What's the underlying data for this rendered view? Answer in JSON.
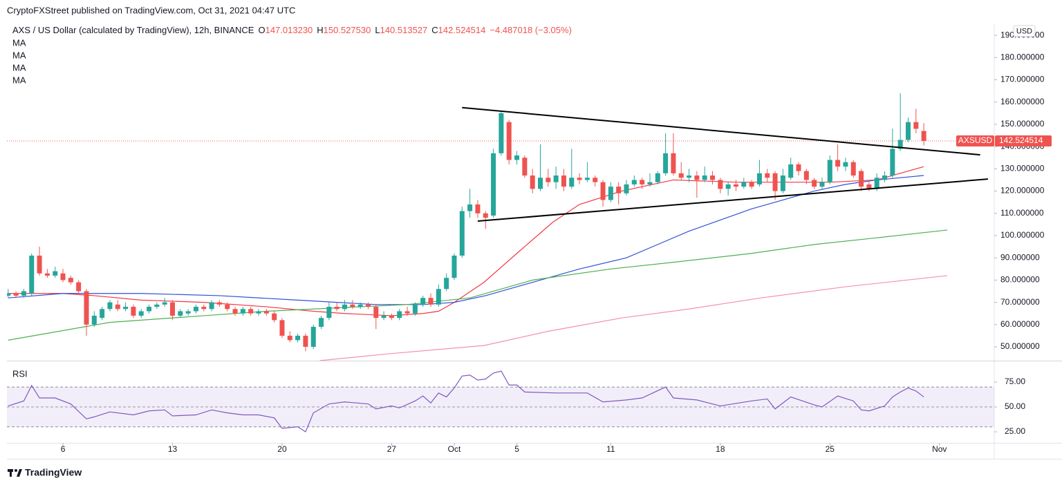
{
  "header": {
    "publisher": "CryptoFXStreet published on TradingView.com, Oct 31, 2021 04:47 UTC",
    "symbol": "AXS / US Dollar (calculated by TradingView), 12h, BINANCE",
    "ohlc_keys": [
      "O",
      "H",
      "L",
      "C"
    ],
    "ohlc_values": [
      "147.013230",
      "150.527530",
      "140.513527",
      "142.524514"
    ],
    "change": "−4.487018 (−3.05%)"
  },
  "chart_data": [
    {
      "type": "candlestick",
      "up_color": "#26a69a",
      "down_color": "#ef5350",
      "xlim": [
        1.42,
        64.5
      ],
      "xticks": [
        {
          "value": 5,
          "label": "6"
        },
        {
          "value": 12,
          "label": "13"
        },
        {
          "value": 19,
          "label": "20"
        },
        {
          "value": 26,
          "label": "27"
        },
        {
          "value": 30,
          "label": "Oct"
        },
        {
          "value": 34,
          "label": "5"
        },
        {
          "value": 40,
          "label": "11"
        },
        {
          "value": 47,
          "label": "18"
        },
        {
          "value": 54,
          "label": "25"
        },
        {
          "value": 61,
          "label": "Nov"
        }
      ],
      "ylim": [
        43.8,
        195
      ],
      "yticks": [
        {
          "value": 50,
          "label": "50.000000"
        },
        {
          "value": 60,
          "label": "60.000000"
        },
        {
          "value": 70,
          "label": "70.000000"
        },
        {
          "value": 80,
          "label": "80.000000"
        },
        {
          "value": 90,
          "label": "90.000000"
        },
        {
          "value": 100,
          "label": "100.000000"
        },
        {
          "value": 110,
          "label": "110.000000"
        },
        {
          "value": 120,
          "label": "120.000000"
        },
        {
          "value": 130,
          "label": "130.000000"
        },
        {
          "value": 140,
          "label": "140.000000"
        },
        {
          "value": 150,
          "label": "150.000000"
        },
        {
          "value": 160,
          "label": "160.000000"
        },
        {
          "value": 170,
          "label": "170.000000"
        },
        {
          "value": 180,
          "label": "180.000000"
        },
        {
          "value": 190,
          "label": "190.000000"
        }
      ],
      "currency": "USD",
      "symbol_tag": "AXSUSD",
      "last_price": 142.524514,
      "x": [
        1.5,
        2,
        2.5,
        3,
        3.5,
        4,
        4.5,
        5,
        5.5,
        6,
        6.5,
        7,
        7.5,
        8,
        8.5,
        9,
        9.5,
        10,
        10.5,
        11,
        11.5,
        12,
        12.5,
        13,
        13.5,
        14,
        14.5,
        15,
        15.5,
        16,
        16.5,
        17,
        17.5,
        18,
        18.5,
        19,
        19.5,
        20,
        20.5,
        21,
        21.5,
        22,
        22.5,
        23,
        23.5,
        24,
        24.5,
        25,
        25.5,
        26,
        26.5,
        27,
        27.5,
        28,
        28.5,
        29,
        29.5,
        30,
        30.5,
        31,
        31.5,
        32,
        32.5,
        33,
        33.5,
        34,
        34.5,
        35,
        35.5,
        36,
        36.5,
        37,
        37.5,
        38,
        38.5,
        39,
        39.5,
        40,
        40.5,
        41,
        41.5,
        42,
        42.5,
        43,
        43.5,
        44,
        44.5,
        45,
        45.5,
        46,
        46.5,
        47,
        47.5,
        48,
        48.5,
        49,
        49.5,
        50,
        50.5,
        51,
        51.5,
        52,
        52.5,
        53,
        53.5,
        54,
        54.5,
        55,
        55.5,
        56,
        56.5,
        57,
        57.5,
        58,
        58.5,
        59,
        59.5,
        60
      ],
      "ohlc": [
        [
          73,
          76,
          72,
          74
        ],
        [
          74,
          75,
          72,
          73
        ],
        [
          73,
          76,
          72,
          75
        ],
        [
          74,
          92,
          73,
          91
        ],
        [
          91,
          95,
          82,
          83
        ],
        [
          83,
          85,
          81,
          82
        ],
        [
          82,
          86,
          81,
          84
        ],
        [
          83,
          85,
          79,
          80
        ],
        [
          81,
          82,
          78,
          79
        ],
        [
          79,
          80,
          74,
          75
        ],
        [
          75,
          76,
          55,
          60
        ],
        [
          60,
          66,
          59,
          64
        ],
        [
          63,
          68,
          62,
          67
        ],
        [
          67,
          71,
          66,
          70
        ],
        [
          69,
          71,
          66,
          67
        ],
        [
          67,
          70,
          66,
          68
        ],
        [
          68,
          69,
          63,
          64
        ],
        [
          64,
          67,
          63,
          66
        ],
        [
          66,
          69,
          65,
          68
        ],
        [
          68,
          70,
          67,
          69
        ],
        [
          69,
          72,
          68,
          70
        ],
        [
          70,
          71,
          62,
          64
        ],
        [
          64,
          67,
          63,
          66
        ],
        [
          65,
          67,
          64,
          66
        ],
        [
          66,
          69,
          65,
          68
        ],
        [
          68,
          69,
          66,
          67
        ],
        [
          67,
          71,
          66,
          70
        ],
        [
          70,
          71,
          68,
          69
        ],
        [
          69,
          70,
          66,
          67
        ],
        [
          67,
          68,
          64,
          65
        ],
        [
          65,
          68,
          64,
          67
        ],
        [
          67,
          68,
          64,
          65
        ],
        [
          65,
          67,
          64,
          66
        ],
        [
          66,
          67,
          64,
          65
        ],
        [
          65,
          66,
          61,
          62
        ],
        [
          62,
          63,
          54,
          55
        ],
        [
          55,
          57,
          52,
          53
        ],
        [
          53,
          56,
          52,
          55
        ],
        [
          55,
          56,
          48,
          50
        ],
        [
          50,
          60,
          49,
          59
        ],
        [
          59,
          64,
          58,
          63
        ],
        [
          63,
          70,
          62,
          68
        ],
        [
          68,
          70,
          66,
          67
        ],
        [
          67,
          71,
          66,
          69
        ],
        [
          69,
          71,
          67,
          68
        ],
        [
          68,
          70,
          67,
          69
        ],
        [
          69,
          70,
          67,
          68
        ],
        [
          68,
          69,
          58,
          63
        ],
        [
          63,
          66,
          62,
          64
        ],
        [
          64,
          65,
          62,
          63
        ],
        [
          63,
          67,
          62,
          66
        ],
        [
          66,
          68,
          64,
          65
        ],
        [
          65,
          70,
          64,
          69
        ],
        [
          69,
          73,
          68,
          72
        ],
        [
          72,
          74,
          68,
          69
        ],
        [
          69,
          78,
          68,
          76
        ],
        [
          76,
          83,
          75,
          81
        ],
        [
          81,
          92,
          80,
          91
        ],
        [
          91,
          113,
          90,
          111
        ],
        [
          111,
          121,
          108,
          114
        ],
        [
          114,
          116,
          108,
          110
        ],
        [
          110,
          111,
          103,
          108
        ],
        [
          109,
          139,
          108,
          137
        ],
        [
          137,
          156,
          136,
          155
        ],
        [
          151,
          152,
          132,
          134
        ],
        [
          134,
          138,
          132,
          136
        ],
        [
          135,
          136,
          126,
          127
        ],
        [
          127,
          130,
          119,
          121
        ],
        [
          121,
          141,
          120,
          126
        ],
        [
          126,
          130,
          122,
          124
        ],
        [
          124,
          131,
          121,
          127
        ],
        [
          127,
          130,
          120,
          122
        ],
        [
          122,
          139,
          121,
          126
        ],
        [
          126,
          128,
          123,
          125
        ],
        [
          125,
          133,
          124,
          126
        ],
        [
          126,
          127,
          122,
          124
        ],
        [
          124,
          125,
          113,
          116
        ],
        [
          116,
          124,
          115,
          122
        ],
        [
          122,
          124,
          114,
          119
        ],
        [
          119,
          125,
          118,
          123
        ],
        [
          123,
          127,
          122,
          125
        ],
        [
          125,
          126,
          121,
          123
        ],
        [
          123,
          128,
          122,
          124
        ],
        [
          124,
          129,
          123,
          128
        ],
        [
          128,
          146,
          127,
          137
        ],
        [
          137,
          146,
          127,
          128
        ],
        [
          128,
          133,
          125,
          126
        ],
        [
          126,
          130,
          124,
          127
        ],
        [
          127,
          129,
          117,
          125
        ],
        [
          125,
          131,
          124,
          127
        ],
        [
          127,
          129,
          123,
          125
        ],
        [
          125,
          126,
          119,
          121
        ],
        [
          121,
          124,
          118,
          123
        ],
        [
          123,
          125,
          120,
          122
        ],
        [
          122,
          126,
          121,
          124
        ],
        [
          124,
          125,
          121,
          122
        ],
        [
          123,
          134,
          122,
          128
        ],
        [
          128,
          130,
          124,
          126
        ],
        [
          128,
          129,
          116,
          120
        ],
        [
          120,
          130,
          119,
          127
        ],
        [
          126,
          135,
          125,
          132
        ],
        [
          132,
          133,
          127,
          129
        ],
        [
          129,
          130,
          123,
          125
        ],
        [
          125,
          126,
          121,
          122
        ],
        [
          122,
          126,
          121,
          124
        ],
        [
          124,
          136,
          123,
          134
        ],
        [
          134,
          141,
          129,
          131
        ],
        [
          131,
          135,
          129,
          133
        ],
        [
          133,
          134,
          126,
          127
        ],
        [
          129,
          130,
          120,
          122
        ],
        [
          123,
          125,
          120,
          121
        ],
        [
          121,
          128,
          120,
          126
        ],
        [
          125,
          129,
          124,
          127
        ],
        [
          127,
          148,
          126,
          139
        ],
        [
          139,
          164,
          138,
          143
        ],
        [
          143,
          153,
          142,
          151
        ],
        [
          151,
          157,
          146,
          148
        ],
        [
          147.01323,
          150.52753,
          140.513527,
          142.524514
        ]
      ],
      "series": [
        {
          "name": "MA",
          "color": "#f23645",
          "x": [
            1.5,
            5,
            7,
            10,
            14,
            18,
            21,
            23,
            26,
            28,
            29,
            30,
            31.9,
            34,
            36.3,
            38,
            40.7,
            44,
            48,
            54,
            57,
            60
          ],
          "values": [
            74,
            74,
            73,
            71,
            70,
            68,
            66,
            65,
            64,
            65,
            66,
            70,
            79,
            92,
            106,
            114,
            120,
            125,
            124,
            124,
            125,
            131
          ]
        },
        {
          "name": "MA",
          "color": "#2f4fd8",
          "x": [
            1.5,
            5,
            10,
            15,
            20,
            25,
            28,
            30,
            32,
            34,
            36,
            38,
            41,
            43,
            45,
            47,
            49,
            51,
            53,
            55,
            57,
            60
          ],
          "values": [
            72,
            74,
            74,
            73,
            71,
            69,
            69,
            70,
            73,
            77,
            81,
            85,
            90,
            96,
            102,
            107,
            112,
            116,
            120,
            123,
            125,
            127
          ]
        },
        {
          "name": "MA",
          "color": "#4caf50",
          "x": [
            1.5,
            8,
            14,
            18,
            24,
            27,
            31,
            35,
            40,
            44,
            49,
            53,
            57,
            61.5
          ],
          "values": [
            53,
            61,
            64,
            66,
            68,
            69,
            72,
            80,
            85,
            88,
            92,
            96,
            99,
            102.5
          ]
        },
        {
          "name": "MA",
          "color": "#f48fb1",
          "x": [
            21.4,
            26,
            31.9,
            36,
            40.7,
            45,
            49.6,
            55,
            61.5
          ],
          "values": [
            43.8,
            47,
            50.6,
            57,
            63,
            67,
            72,
            77,
            82
          ]
        }
      ],
      "trendlines": [
        {
          "x": [
            30.5,
            63.6
          ],
          "values": [
            157.5,
            136.3
          ]
        },
        {
          "x": [
            31.5,
            64.1
          ],
          "values": [
            106.5,
            125.4
          ]
        }
      ]
    },
    {
      "type": "line",
      "title": "RSI",
      "color": "#7e57c2",
      "ylim": [
        13.9,
        95.1
      ],
      "yticks": [
        {
          "value": 75,
          "label": "75.00"
        },
        {
          "value": 50,
          "label": "50.00"
        },
        {
          "value": 25,
          "label": "25.00"
        }
      ],
      "bands": [
        70,
        50,
        30
      ],
      "x": [
        1.5,
        2.5,
        3,
        3.5,
        4.5,
        5.5,
        6.5,
        7,
        8,
        9.5,
        10.5,
        11.5,
        12,
        13.5,
        14.5,
        15.5,
        16.5,
        17.5,
        18.5,
        19,
        20,
        20.5,
        21,
        22,
        23,
        24.5,
        25,
        26,
        26.5,
        27.5,
        28,
        28.5,
        29,
        29.5,
        30,
        30.5,
        31,
        31.5,
        32,
        32.5,
        33,
        33.5,
        34,
        34.5,
        36.5,
        38.5,
        39.5,
        41,
        42,
        43.5,
        44,
        45.5,
        47,
        49,
        50,
        50.5,
        51.5,
        53,
        53.5,
        54.5,
        55.5,
        56,
        56.5,
        57.5,
        58,
        58.5,
        59,
        59.5,
        60
      ],
      "values": [
        51,
        56,
        71.5,
        59,
        59,
        53,
        38,
        40,
        45,
        42,
        46,
        47,
        41,
        42,
        47,
        44,
        42,
        42,
        39,
        28.5,
        30,
        25,
        44,
        53,
        55,
        53,
        48,
        51,
        49,
        56,
        61,
        54,
        64,
        60,
        69,
        81,
        82,
        77,
        78,
        84,
        86,
        72,
        72,
        65,
        64,
        64,
        55,
        57,
        59,
        70,
        59,
        57,
        51,
        56,
        58,
        48,
        60,
        52,
        50,
        61,
        56,
        47,
        46,
        51,
        60,
        65,
        69,
        66,
        60
      ]
    }
  ],
  "footer": "TradingView"
}
